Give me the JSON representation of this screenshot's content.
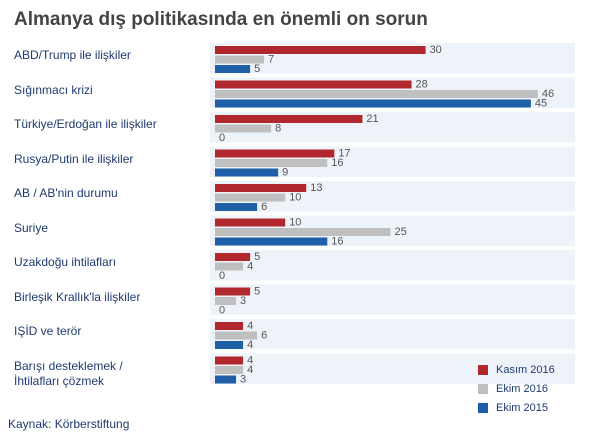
{
  "chart_data": {
    "type": "bar",
    "orientation": "horizontal",
    "title": "Almanya dış politikasında en önemli on sorun",
    "source": "Kaynak: Körberstiftung",
    "categories": [
      "ABD/Trump ile ilişkiler",
      "Sığınmacı krizi",
      "Türkiye/Erdoğan ile ilişkiler",
      "Rusya/Putin ile ilişkiler",
      "AB / AB'nin durumu",
      "Suriye",
      "Uzakdoğu ihtilafları",
      "Birleşik Krallık'la ilişkiler",
      "IŞİD ve terör",
      "Barışı desteklemek /\nİhtilafları çözmek"
    ],
    "series": [
      {
        "name": "Kasım 2016",
        "color": "#b0282e",
        "values": [
          30,
          28,
          21,
          17,
          13,
          10,
          5,
          5,
          4,
          4
        ]
      },
      {
        "name": "Ekim 2016",
        "color": "#bfbfbf",
        "values": [
          7,
          46,
          8,
          16,
          10,
          25,
          4,
          3,
          6,
          4
        ]
      },
      {
        "name": "Ekim 2015",
        "color": "#1f5fa8",
        "values": [
          5,
          45,
          0,
          9,
          6,
          16,
          0,
          0,
          4,
          3
        ]
      }
    ],
    "xlim": [
      0,
      52
    ]
  }
}
